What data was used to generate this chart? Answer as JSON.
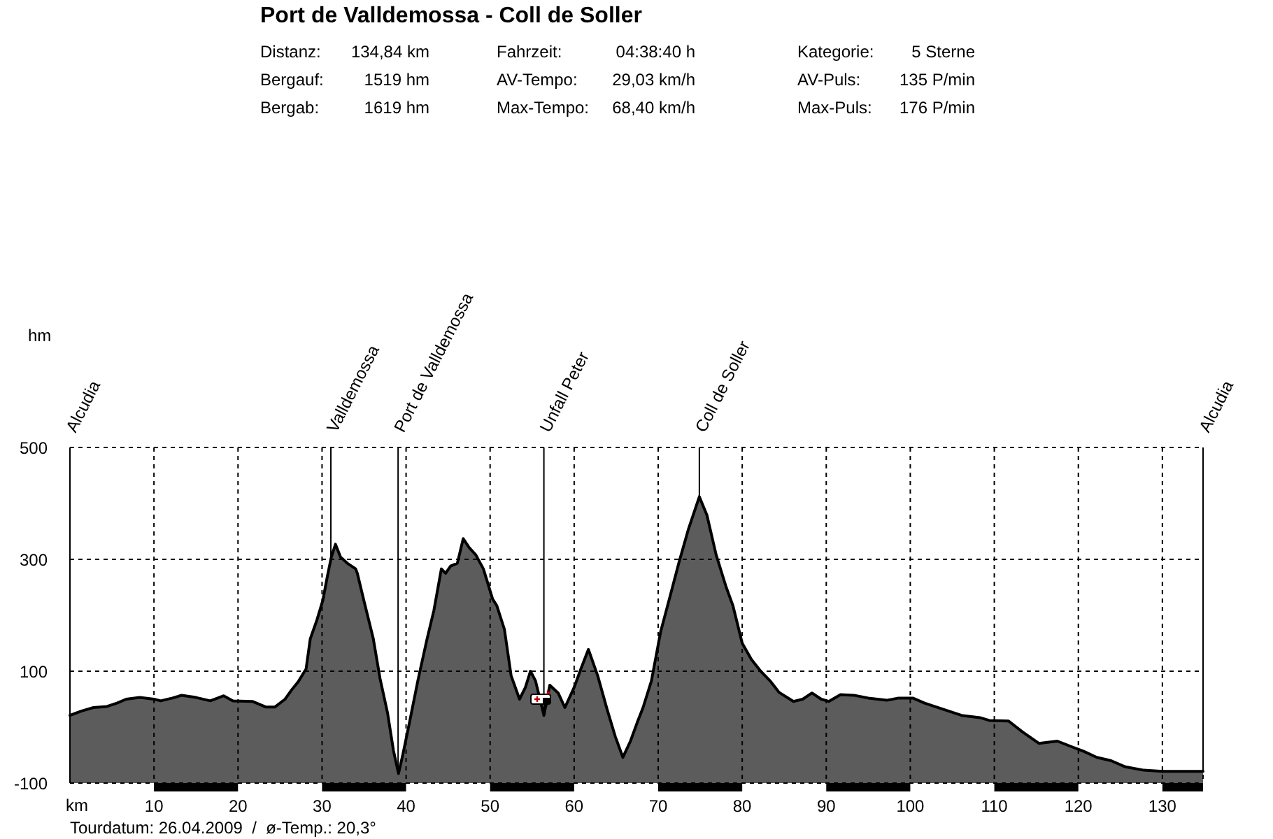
{
  "chart_data": {
    "type": "line",
    "title": "Port de Valldemossa - Coll de Soller",
    "xlabel": "km",
    "annotations": [
      "hm",
      "Distanz:",
      "134,84 km",
      "Fahrzeit:",
      "04:38:40 h",
      "Kategorie:",
      "5 Sterne",
      "Bergauf:",
      "1519 hm",
      "AV-Tempo:",
      "29,03 km/h",
      "AV-Puls:",
      "135 P/min",
      "Bergab:",
      "1619 hm",
      "Max-Tempo:",
      "68,40 km/h",
      "Max-Puls:",
      "176 P/min",
      "Tourdatum: 26.04.2009  /  ø-Temp.: 20,3°"
    ],
    "x": [
      0,
      1.4,
      2.8,
      4.4,
      5.6,
      6.7,
      8.3,
      10,
      10.8,
      12.2,
      13.3,
      15,
      16.7,
      18.3,
      19.4,
      21.7,
      23.3,
      24.4,
      25.6,
      26.4,
      27.2,
      28.1,
      28.6,
      29.4,
      30.1,
      30.6,
      31.1,
      31.6,
      32.2,
      33.1,
      34.0,
      34.2,
      35,
      36.1,
      36.9,
      37.8,
      38.5,
      39.1,
      39.6,
      40.4,
      41.4,
      42.5,
      43.3,
      44.2,
      44.7,
      45.3,
      46.1,
      46.8,
      47.5,
      48.3,
      49.2,
      50.3,
      50.8,
      51.7,
      52.5,
      53.5,
      54.2,
      54.8,
      55.4,
      56.4,
      57.1,
      58.1,
      58.9,
      60,
      60.8,
      61.7,
      62.8,
      63.9,
      64.9,
      65.8,
      66.7,
      67.5,
      68.2,
      69.2,
      70.3,
      71.4,
      72.5,
      73.6,
      74.9,
      75.8,
      76.9,
      78.1,
      78.9,
      80,
      81.1,
      82.2,
      83.3,
      84.4,
      86.1,
      87.2,
      88.3,
      89.4,
      90.3,
      91.7,
      93.3,
      95,
      97.2,
      98.6,
      100.3,
      101.7,
      103.9,
      106.1,
      108.3,
      109.4,
      111.7,
      113.3,
      115.3,
      117.5,
      119.2,
      120.6,
      122.2,
      123.9,
      125.6,
      127.8,
      130,
      134.84
    ],
    "series": [
      {
        "color": "#000000",
        "values": [
          21,
          29,
          35,
          37,
          43,
          50,
          53,
          50,
          47,
          52,
          57,
          53,
          47,
          56,
          47,
          46,
          36,
          36,
          50,
          67,
          82,
          104,
          158,
          192,
          227,
          267,
          304,
          327,
          304,
          292,
          283,
          275,
          225,
          158,
          87,
          25,
          -42,
          -83,
          -50,
          8,
          83,
          158,
          208,
          283,
          275,
          288,
          293,
          337,
          321,
          308,
          283,
          229,
          217,
          175,
          92,
          50,
          71,
          100,
          83,
          21,
          75,
          61,
          35,
          71,
          104,
          139,
          92,
          33,
          -17,
          -54,
          -25,
          8,
          35,
          83,
          171,
          233,
          296,
          354,
          412,
          379,
          308,
          250,
          217,
          150,
          121,
          100,
          83,
          62,
          46,
          50,
          61,
          50,
          46,
          58,
          57,
          52,
          48,
          52,
          52,
          43,
          32,
          21,
          17,
          12,
          11,
          -8,
          -29,
          -25,
          -35,
          -43,
          -54,
          -60,
          -71,
          -77,
          -79,
          -79
        ],
        "lower": [
          -100,
          -100,
          -100,
          -100,
          -100,
          -100,
          -100,
          -100,
          -100,
          -100,
          -100,
          -100,
          -100,
          -100,
          -100,
          -100,
          -100,
          -100,
          -100,
          -100,
          -100,
          -100,
          -100,
          -100,
          -100,
          -100,
          -100,
          -100,
          -100,
          -100,
          -100,
          -100,
          -100,
          -100,
          -100,
          -100,
          -100,
          -100,
          -100,
          -100,
          -100,
          -100,
          -100,
          -100,
          -100,
          -100,
          -100,
          -100,
          -100,
          -100,
          -100,
          -100,
          -100,
          -100,
          -100,
          -100,
          -100,
          -100,
          -100,
          -100,
          -100,
          -100,
          -100,
          -100,
          -100,
          -100,
          -100,
          -100,
          -100,
          -100,
          -100,
          -100,
          -100,
          -100,
          -100,
          -100,
          -100,
          -100,
          -100,
          -100,
          -100,
          -100,
          -100,
          -100,
          -100,
          -100,
          -100,
          -100,
          -100,
          -100,
          -100,
          -100,
          -100,
          -100,
          -100,
          -100,
          -100,
          -100,
          -100,
          -100,
          -100,
          -100,
          -100,
          -100,
          -100,
          -100,
          -100,
          -100,
          -100,
          -100,
          -100,
          -100,
          -100,
          -100,
          -100,
          -100
        ],
        "upper": [
          21,
          29,
          35,
          37,
          43,
          50,
          53,
          50,
          47,
          52,
          57,
          53,
          47,
          56,
          47,
          46,
          36,
          36,
          50,
          67,
          82,
          104,
          158,
          192,
          227,
          267,
          304,
          327,
          304,
          292,
          283,
          275,
          225,
          158,
          87,
          25,
          -42,
          -83,
          -50,
          8,
          83,
          158,
          208,
          283,
          275,
          288,
          293,
          337,
          321,
          308,
          283,
          229,
          217,
          175,
          92,
          50,
          71,
          100,
          83,
          21,
          75,
          61,
          35,
          71,
          104,
          139,
          92,
          33,
          -17,
          -54,
          -25,
          8,
          35,
          83,
          171,
          233,
          296,
          354,
          412,
          379,
          308,
          250,
          217,
          150,
          121,
          100,
          83,
          62,
          46,
          50,
          61,
          50,
          46,
          58,
          57,
          52,
          48,
          52,
          52,
          43,
          32,
          21,
          17,
          12,
          11,
          -8,
          -29,
          -25,
          -35,
          -43,
          -54,
          -60,
          -71,
          -77,
          -79,
          -79
        ]
      }
    ],
    "xlim": [
      0,
      134.84
    ],
    "ylim": [
      -100,
      500
    ],
    "xticks": [
      10,
      20,
      30,
      40,
      50,
      60,
      70,
      80,
      90,
      100,
      110,
      120,
      130
    ],
    "yticks": [
      -100,
      100,
      300,
      500
    ],
    "grid": true,
    "ref_lines": [
      {
        "axis": "x",
        "value": 0,
        "label": "Alcudia"
      },
      {
        "axis": "x",
        "value": 31.05,
        "label": "Valldemossa"
      },
      {
        "axis": "x",
        "value": 39.05,
        "label": "Port de Valldemossa"
      },
      {
        "axis": "x",
        "value": 56.4,
        "label": "Unfall Peter"
      },
      {
        "axis": "x",
        "value": 74.9,
        "label": "Coll de Soller"
      },
      {
        "axis": "x",
        "value": 134.84,
        "label": "Alcudia"
      }
    ]
  }
}
